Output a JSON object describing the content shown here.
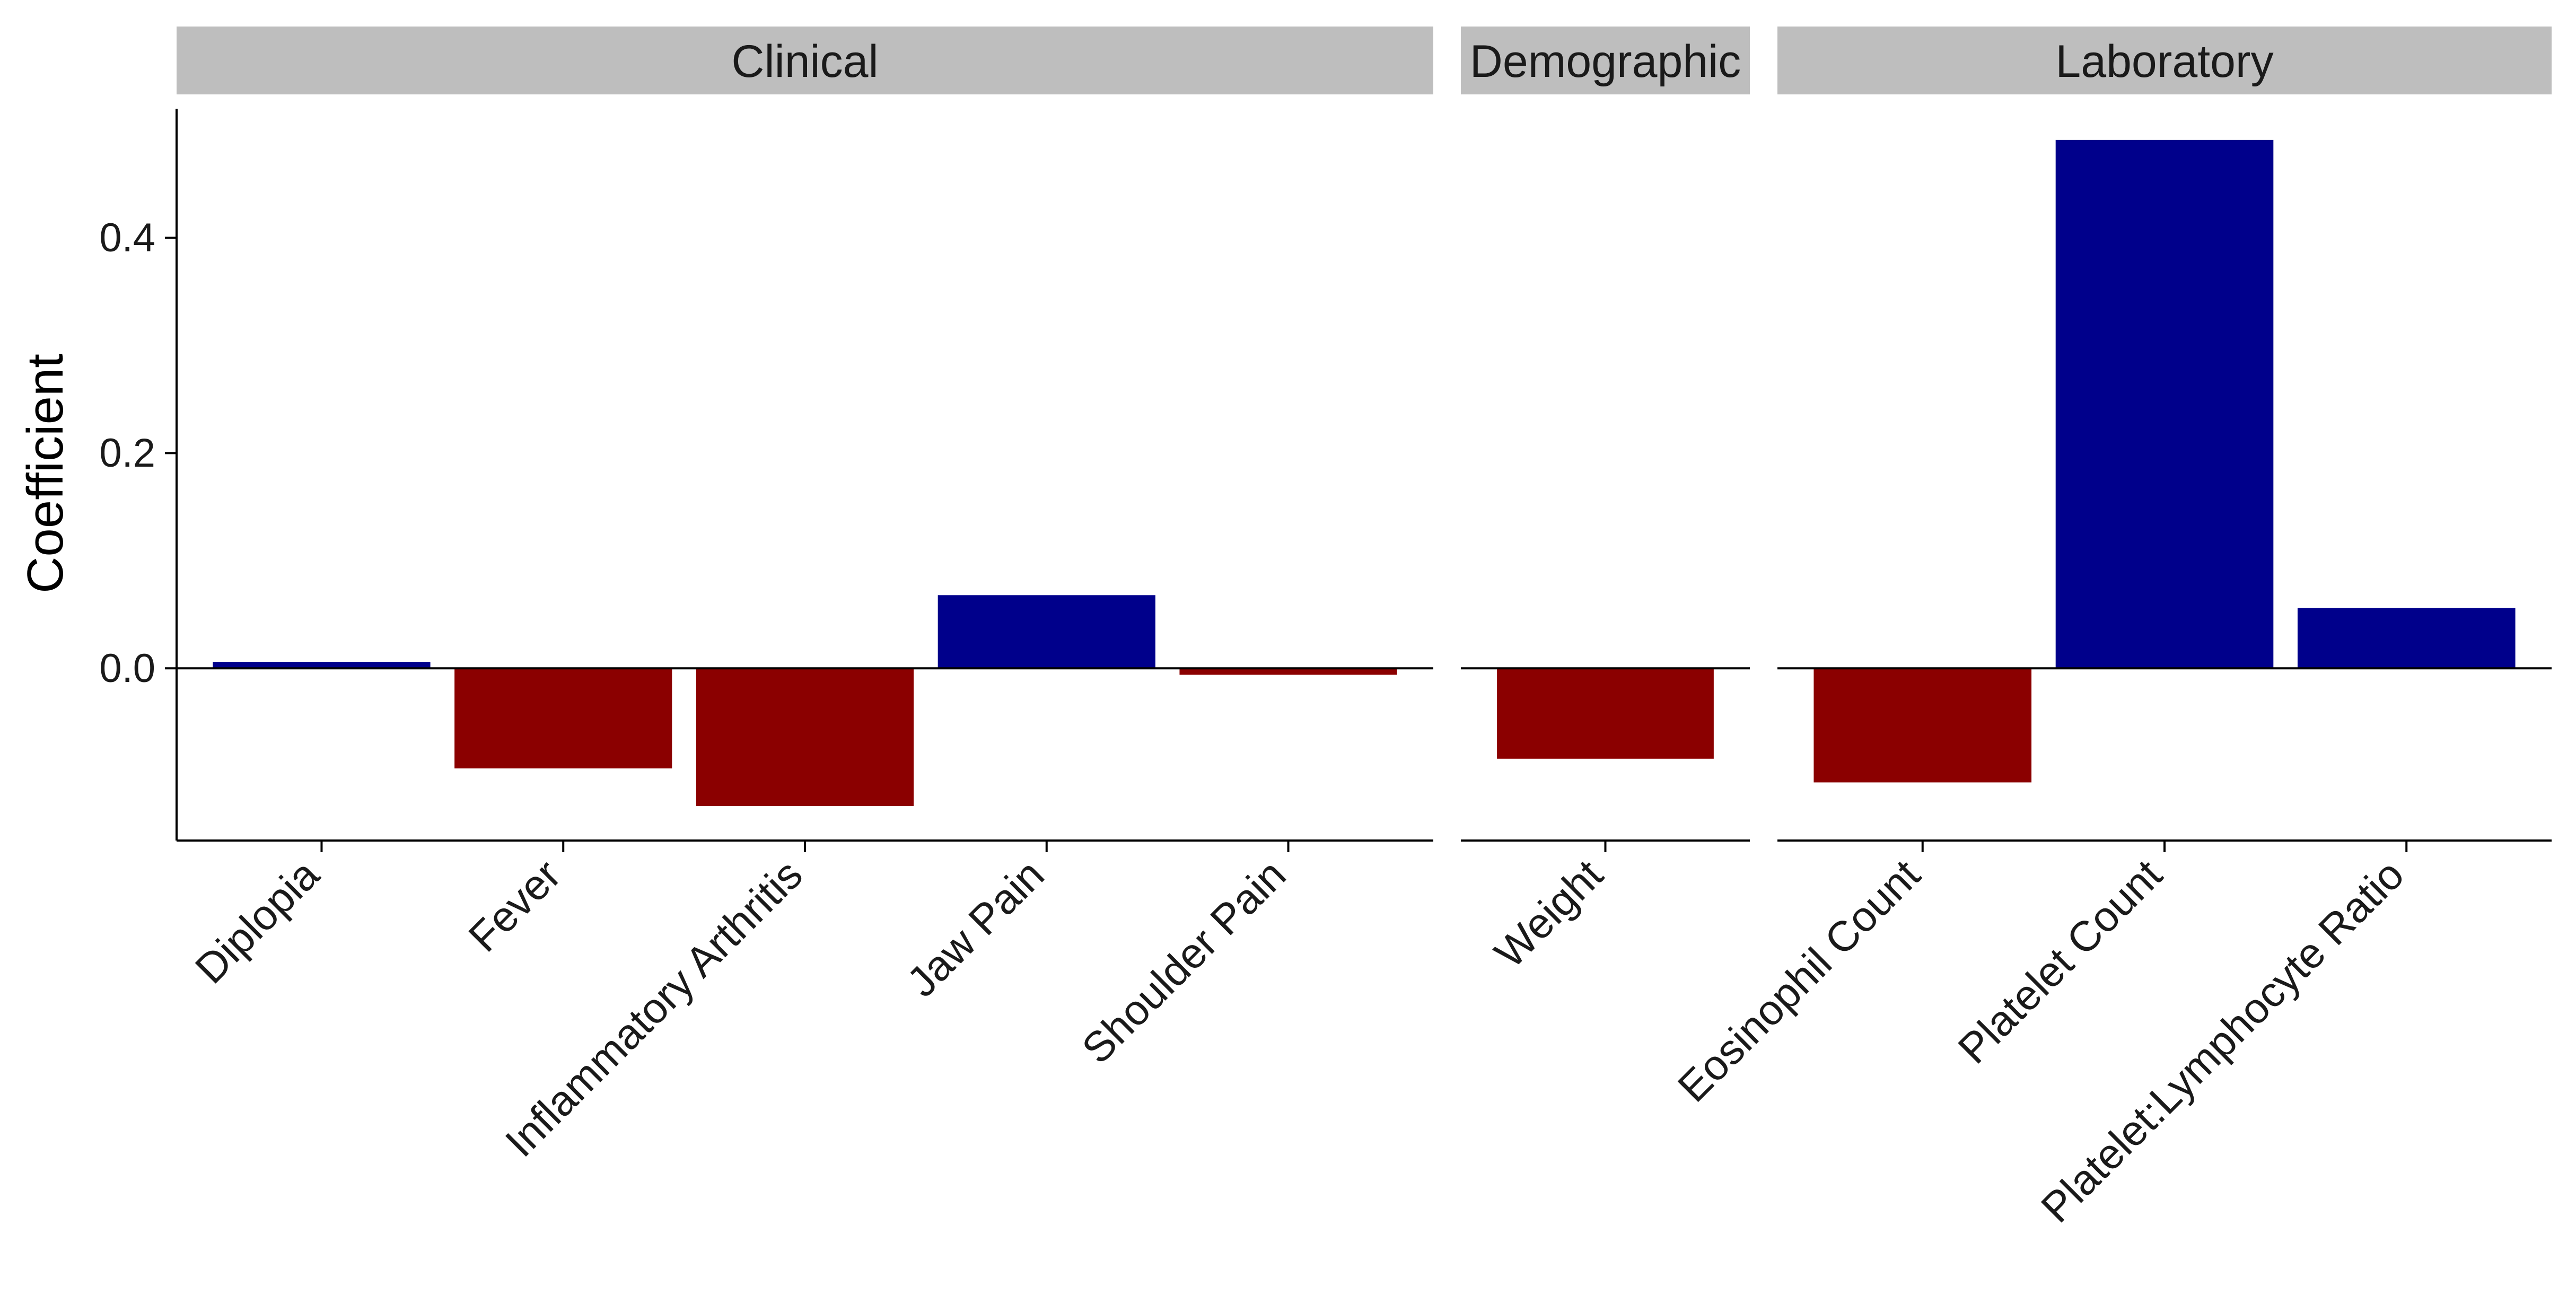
{
  "chart_data": {
    "type": "bar",
    "ylabel": "Coefficient",
    "xlabel": "",
    "ylim": [
      -0.16,
      0.52
    ],
    "yticks": [
      0.0,
      0.2,
      0.4
    ],
    "ytick_labels": [
      "0.0",
      "0.2",
      "0.4"
    ],
    "grid": false,
    "legend": "none",
    "colors": {
      "positive": "#00008b",
      "negative": "#8b0000"
    },
    "facets": [
      {
        "name": "Clinical",
        "categories": [
          "Diplopia",
          "Fever",
          "Inflammatory Arthritis",
          "Jaw Pain",
          "Shoulder Pain"
        ],
        "values": [
          0.006,
          -0.093,
          -0.128,
          0.068,
          -0.006
        ]
      },
      {
        "name": "Demographic",
        "categories": [
          "Weight"
        ],
        "values": [
          -0.084
        ]
      },
      {
        "name": "Laboratory",
        "categories": [
          "Eosinophil Count",
          "Platelet Count",
          "Platelet:Lymphocyte Ratio"
        ],
        "values": [
          -0.106,
          0.491,
          0.056
        ]
      }
    ]
  }
}
